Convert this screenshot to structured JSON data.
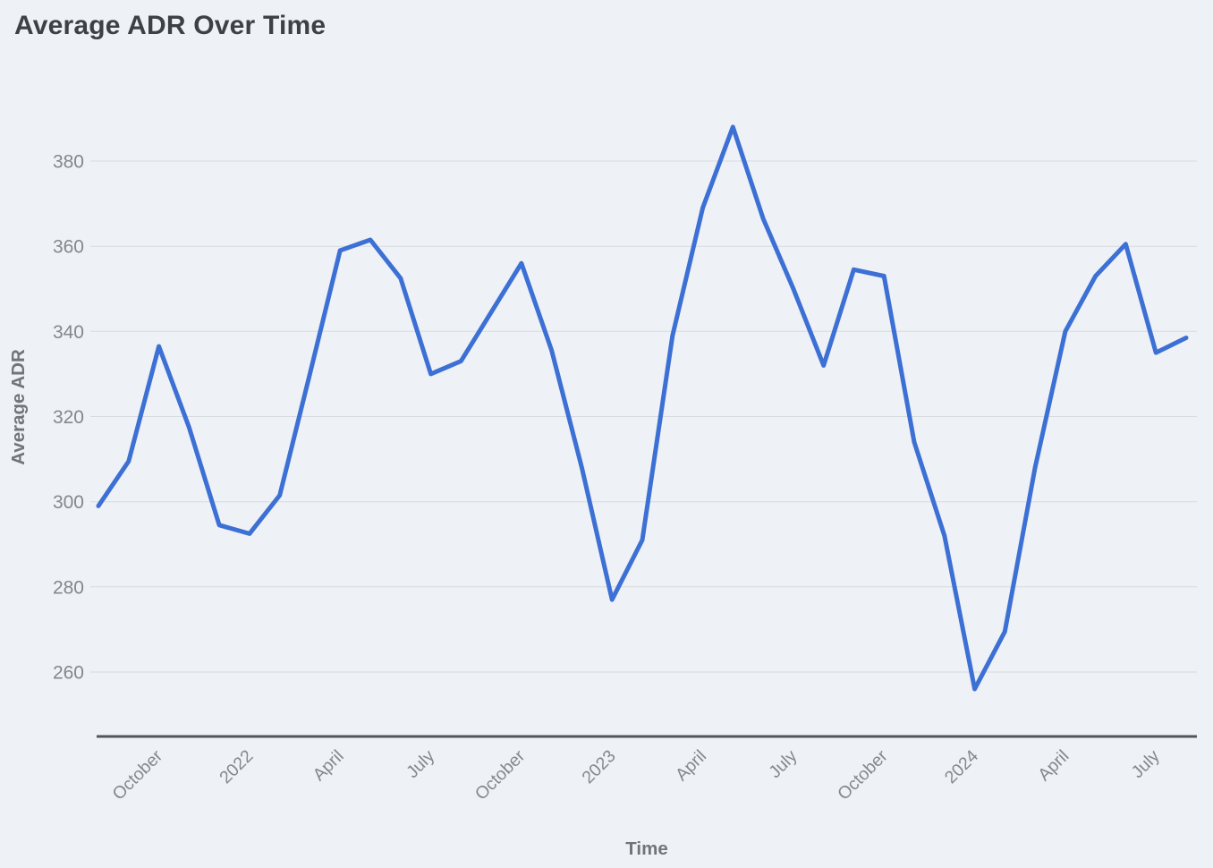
{
  "title": "Average ADR Over Time",
  "colors": {
    "background": "#eef1f6",
    "series_line": "#3c70d4",
    "gridline": "#d7dade",
    "axis_line": "#51555a",
    "title_text": "#3e4144",
    "tick_label_text": "#84878b",
    "axis_title_text": "#717478"
  },
  "chart_data": {
    "type": "line",
    "title": "Average ADR Over Time",
    "xlabel": "Time",
    "ylabel": "Average ADR",
    "x": [
      "Aug 2021",
      "Sep 2021",
      "Oct 2021",
      "Nov 2021",
      "Dec 2021",
      "Jan 2022",
      "Feb 2022",
      "Mar 2022",
      "Apr 2022",
      "May 2022",
      "Jun 2022",
      "Jul 2022",
      "Aug 2022",
      "Sep 2022",
      "Oct 2022",
      "Nov 2022",
      "Dec 2022",
      "Jan 2023",
      "Feb 2023",
      "Mar 2023",
      "Apr 2023",
      "May 2023",
      "Jun 2023",
      "Jul 2023",
      "Aug 2023",
      "Sep 2023",
      "Oct 2023",
      "Nov 2023",
      "Dec 2023",
      "Jan 2024",
      "Feb 2024",
      "Mar 2024",
      "Apr 2024",
      "May 2024",
      "Jun 2024",
      "Jul 2024",
      "Aug 2024"
    ],
    "values": [
      299,
      309.5,
      336.5,
      317.5,
      294.5,
      292.5,
      301.5,
      330,
      359,
      361.5,
      352.5,
      330,
      333,
      344.5,
      356,
      335.5,
      308,
      277,
      291,
      339,
      369,
      388,
      366.5,
      350,
      332,
      354.5,
      353,
      314,
      292,
      256,
      269.5,
      308,
      340,
      353,
      360.5,
      335,
      338.5
    ],
    "y_ticks": [
      260,
      280,
      300,
      320,
      340,
      360,
      380
    ],
    "x_tick_indices": [
      2,
      5,
      8,
      11,
      14,
      17,
      20,
      23,
      26,
      29,
      32,
      35
    ],
    "x_tick_labels": [
      "October",
      "2022",
      "April",
      "July",
      "October",
      "2023",
      "April",
      "July",
      "October",
      "2024",
      "April",
      "July"
    ],
    "ylim": [
      245,
      392
    ],
    "grid": true,
    "legend": false,
    "x_tick_rotation_deg": 45,
    "line_width": 5
  }
}
